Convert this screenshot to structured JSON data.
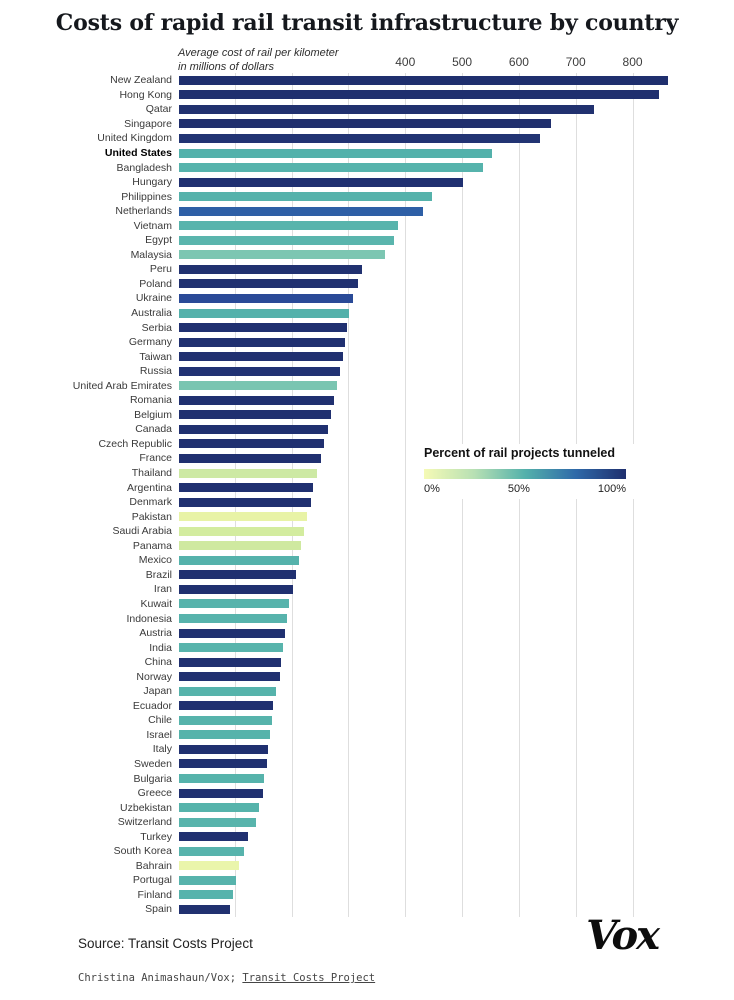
{
  "title": "Costs of rapid rail transit infrastructure by country",
  "axis_note": {
    "line1": "Average cost of rail per kilometer",
    "line2": "in millions of dollars"
  },
  "chart_data": {
    "type": "bar",
    "orientation": "horizontal",
    "title": "Costs of rapid rail transit infrastructure by country",
    "xlabel": "Average cost of rail per kilometer in millions of dollars",
    "xlim": [
      0,
      880
    ],
    "ticks": [
      400,
      500,
      600,
      700,
      800
    ],
    "gridlines": [
      100,
      200,
      300,
      400,
      500,
      600,
      700,
      800
    ],
    "grid": "vertical-light-gray",
    "color_legend": {
      "title": "Percent of rail projects tunneled",
      "labels": [
        "0%",
        "50%",
        "100%"
      ],
      "gradient": [
        "#f5fab5",
        "#b7e0b4",
        "#54b1ab",
        "#2f6aa9",
        "#1f2f6e"
      ]
    },
    "countries": [
      {
        "name": "New Zealand",
        "value": 860,
        "color": "#1f2f6e",
        "bold": false
      },
      {
        "name": "Hong Kong",
        "value": 845,
        "color": "#1f2f6e",
        "bold": false
      },
      {
        "name": "Qatar",
        "value": 730,
        "color": "#21316f",
        "bold": false
      },
      {
        "name": "Singapore",
        "value": 655,
        "color": "#202f6d",
        "bold": false
      },
      {
        "name": "United Kingdom",
        "value": 635,
        "color": "#223473",
        "bold": false
      },
      {
        "name": "United States",
        "value": 550,
        "color": "#53b1ab",
        "bold": true
      },
      {
        "name": "Bangladesh",
        "value": 535,
        "color": "#56b3ac",
        "bold": false
      },
      {
        "name": "Hungary",
        "value": 500,
        "color": "#203071",
        "bold": false
      },
      {
        "name": "Philippines",
        "value": 445,
        "color": "#55b2ab",
        "bold": false
      },
      {
        "name": "Netherlands",
        "value": 430,
        "color": "#2e5fa6",
        "bold": false
      },
      {
        "name": "Vietnam",
        "value": 385,
        "color": "#58b4ac",
        "bold": false
      },
      {
        "name": "Egypt",
        "value": 378,
        "color": "#5ab5ad",
        "bold": false
      },
      {
        "name": "Malaysia",
        "value": 362,
        "color": "#7cc6b2",
        "bold": false
      },
      {
        "name": "Peru",
        "value": 322,
        "color": "#213170",
        "bold": false
      },
      {
        "name": "Poland",
        "value": 315,
        "color": "#213170",
        "bold": false
      },
      {
        "name": "Ukraine",
        "value": 306,
        "color": "#2a4a97",
        "bold": false
      },
      {
        "name": "Australia",
        "value": 300,
        "color": "#54b1ab",
        "bold": false
      },
      {
        "name": "Serbia",
        "value": 296,
        "color": "#203070",
        "bold": false
      },
      {
        "name": "Germany",
        "value": 292,
        "color": "#203070",
        "bold": false
      },
      {
        "name": "Taiwan",
        "value": 288,
        "color": "#203070",
        "bold": false
      },
      {
        "name": "Russia",
        "value": 284,
        "color": "#213273",
        "bold": false
      },
      {
        "name": "United Arab Emirates",
        "value": 278,
        "color": "#7ac5b1",
        "bold": false
      },
      {
        "name": "Romania",
        "value": 272,
        "color": "#203070",
        "bold": false
      },
      {
        "name": "Belgium",
        "value": 267,
        "color": "#203070",
        "bold": false
      },
      {
        "name": "Canada",
        "value": 262,
        "color": "#203070",
        "bold": false
      },
      {
        "name": "Czech Republic",
        "value": 255,
        "color": "#203070",
        "bold": false
      },
      {
        "name": "France",
        "value": 250,
        "color": "#203070",
        "bold": false
      },
      {
        "name": "Thailand",
        "value": 243,
        "color": "#cde9a4",
        "bold": false
      },
      {
        "name": "Argentina",
        "value": 236,
        "color": "#203070",
        "bold": false
      },
      {
        "name": "Denmark",
        "value": 232,
        "color": "#203070",
        "bold": false
      },
      {
        "name": "Pakistan",
        "value": 226,
        "color": "#e8f3a6",
        "bold": false
      },
      {
        "name": "Saudi Arabia",
        "value": 220,
        "color": "#d3ec9f",
        "bold": false
      },
      {
        "name": "Panama",
        "value": 215,
        "color": "#cfe9a0",
        "bold": false
      },
      {
        "name": "Mexico",
        "value": 212,
        "color": "#55b2ab",
        "bold": false
      },
      {
        "name": "Brazil",
        "value": 206,
        "color": "#203070",
        "bold": false
      },
      {
        "name": "Iran",
        "value": 200,
        "color": "#203070",
        "bold": false
      },
      {
        "name": "Kuwait",
        "value": 193,
        "color": "#57b3ac",
        "bold": false
      },
      {
        "name": "Indonesia",
        "value": 190,
        "color": "#57b3ac",
        "bold": false
      },
      {
        "name": "Austria",
        "value": 186,
        "color": "#203070",
        "bold": false
      },
      {
        "name": "India",
        "value": 183,
        "color": "#58b4ac",
        "bold": false
      },
      {
        "name": "China",
        "value": 180,
        "color": "#203070",
        "bold": false
      },
      {
        "name": "Norway",
        "value": 177,
        "color": "#203070",
        "bold": false
      },
      {
        "name": "Japan",
        "value": 170,
        "color": "#56b3ab",
        "bold": false
      },
      {
        "name": "Ecuador",
        "value": 166,
        "color": "#203070",
        "bold": false
      },
      {
        "name": "Chile",
        "value": 163,
        "color": "#56b3ab",
        "bold": false
      },
      {
        "name": "Israel",
        "value": 160,
        "color": "#56b3ab",
        "bold": false
      },
      {
        "name": "Italy",
        "value": 157,
        "color": "#203070",
        "bold": false
      },
      {
        "name": "Sweden",
        "value": 154,
        "color": "#203070",
        "bold": false
      },
      {
        "name": "Bulgaria",
        "value": 150,
        "color": "#56b3ab",
        "bold": false
      },
      {
        "name": "Greece",
        "value": 147,
        "color": "#203070",
        "bold": false
      },
      {
        "name": "Uzbekistan",
        "value": 140,
        "color": "#56b3ab",
        "bold": false
      },
      {
        "name": "Switzerland",
        "value": 135,
        "color": "#58b4ac",
        "bold": false
      },
      {
        "name": "Turkey",
        "value": 122,
        "color": "#203070",
        "bold": false
      },
      {
        "name": "South Korea",
        "value": 115,
        "color": "#57b3ac",
        "bold": false
      },
      {
        "name": "Bahrain",
        "value": 105,
        "color": "#eaf5ab",
        "bold": false
      },
      {
        "name": "Portugal",
        "value": 100,
        "color": "#57b3ac",
        "bold": false
      },
      {
        "name": "Finland",
        "value": 95,
        "color": "#57b3ac",
        "bold": false
      },
      {
        "name": "Spain",
        "value": 90,
        "color": "#213170",
        "bold": false
      }
    ]
  },
  "footer": {
    "source": "Source: Transit Costs Project",
    "credit_prefix": "Christina Animashaun/Vox; ",
    "credit_link": "Transit Costs Project",
    "logo": "Vox"
  }
}
